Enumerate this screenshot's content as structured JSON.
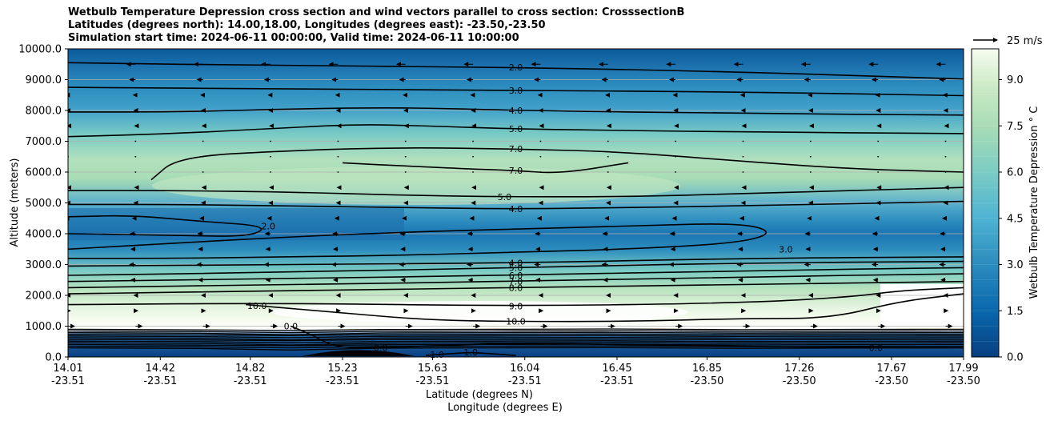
{
  "title": {
    "line1": "Wetbulb Temperature Depression cross section and wind vectors parallel to cross section: CrosssectionB",
    "line2": "Latitudes (degrees north): 14.00,18.00, Longitudes (degrees east): -23.50,-23.50",
    "line3": "Simulation start time: 2024-06-11 00:00:00, Valid time: 2024-06-11 10:00:00"
  },
  "chart_data": {
    "type": "contour",
    "title": "Wetbulb Temperature Depression cross section and wind vectors parallel to cross section: CrosssectionB",
    "ylabel": "Altitude (meters)",
    "xlabel_lat": "Latitude (degrees N)",
    "xlabel_lon": "Longitude (degrees E)",
    "ylim": [
      0,
      10000
    ],
    "xlim": [
      14.01,
      17.99
    ],
    "y_ticks": [
      0,
      1000,
      2000,
      3000,
      4000,
      5000,
      6000,
      7000,
      8000,
      9000,
      10000
    ],
    "y_tick_labels": [
      "0.0",
      "1000.0",
      "2000.0",
      "3000.0",
      "4000.0",
      "5000.0",
      "6000.0",
      "7000.0",
      "8000.0",
      "9000.0",
      "10000.0"
    ],
    "x_ticks": [
      {
        "lat": "14.01",
        "lon": "-23.51",
        "v": 14.01
      },
      {
        "lat": "14.42",
        "lon": "-23.51",
        "v": 14.42
      },
      {
        "lat": "14.82",
        "lon": "-23.51",
        "v": 14.82
      },
      {
        "lat": "15.23",
        "lon": "-23.51",
        "v": 15.23
      },
      {
        "lat": "15.63",
        "lon": "-23.51",
        "v": 15.63
      },
      {
        "lat": "16.04",
        "lon": "-23.51",
        "v": 16.04
      },
      {
        "lat": "16.45",
        "lon": "-23.51",
        "v": 16.45
      },
      {
        "lat": "16.85",
        "lon": "-23.50",
        "v": 16.85
      },
      {
        "lat": "17.26",
        "lon": "-23.50",
        "v": 17.26
      },
      {
        "lat": "17.67",
        "lon": "-23.50",
        "v": 17.67
      },
      {
        "lat": "17.99",
        "lon": "-23.50",
        "v": 17.99
      }
    ],
    "colorbar": {
      "label": "Wetbulb Temperature Depression ° C",
      "range": [
        0,
        10
      ],
      "ticks": [
        0,
        1.5,
        3,
        4.5,
        6,
        7.5,
        9
      ],
      "tick_labels": [
        "0.0",
        "1.5",
        "3.0",
        "4.5",
        "6.0",
        "7.5",
        "9.0"
      ]
    },
    "quiver_key": {
      "label": "25 m/s",
      "value": 25
    },
    "contours": [
      {
        "level": 2.0,
        "label": "2.0",
        "x": [
          14.01,
          15.0,
          16.0,
          17.0,
          17.99
        ],
        "y": [
          9550,
          9450,
          9400,
          9250,
          9020
        ],
        "labels_at": [
          16.0
        ]
      },
      {
        "level": 3.0,
        "label": "3.0",
        "x": [
          14.01,
          15.0,
          16.0,
          17.0,
          17.99
        ],
        "y": [
          8750,
          8700,
          8650,
          8600,
          8480
        ],
        "labels_at": [
          16.0
        ]
      },
      {
        "level": 4.0,
        "label": "4.0",
        "x": [
          14.01,
          14.5,
          15.0,
          15.5,
          16.0,
          17.0,
          17.99
        ],
        "y": [
          7950,
          7950,
          8050,
          8100,
          8000,
          7900,
          7850
        ],
        "labels_at": [
          16.0
        ]
      },
      {
        "level": 5.0,
        "label": "5.0",
        "x": [
          14.01,
          14.5,
          15.0,
          15.3,
          15.6,
          16.0,
          16.5,
          17.0,
          17.99
        ],
        "y": [
          7150,
          7250,
          7450,
          7550,
          7500,
          7400,
          7350,
          7300,
          7250
        ],
        "labels_at": [
          16.0
        ]
      },
      {
        "level": 7.0,
        "label": "7.0",
        "x": [
          14.38,
          14.5,
          15.0,
          15.5,
          16.0,
          16.5,
          17.0,
          17.5,
          17.99
        ],
        "y": [
          5750,
          6500,
          6700,
          6800,
          6750,
          6650,
          6350,
          6100,
          6000
        ],
        "labels_at": [
          16.0
        ]
      },
      {
        "level": 7.0,
        "label": "7.0",
        "x": [
          15.23,
          15.5,
          15.8,
          16.0,
          16.2,
          16.5
        ],
        "y": [
          6300,
          6200,
          6100,
          6050,
          5950,
          6300
        ],
        "labels_at": [
          16.0
        ]
      },
      {
        "level": 5.0,
        "label": "5.0",
        "x": [
          14.01,
          14.5,
          15.0,
          15.5,
          15.9,
          16.5,
          17.0,
          17.99
        ],
        "y": [
          5400,
          5400,
          5350,
          5250,
          5200,
          5200,
          5300,
          5500
        ],
        "labels_at": [
          15.95
        ]
      },
      {
        "level": 4.0,
        "label": "4.0",
        "x": [
          14.01,
          14.5,
          15.0,
          15.5,
          16.0,
          16.5,
          17.0,
          17.99
        ],
        "y": [
          4950,
          4950,
          4900,
          4850,
          4800,
          4850,
          4900,
          5050
        ],
        "labels_at": [
          16.0
        ]
      },
      {
        "level": 2.0,
        "label": "2.0",
        "x": [
          14.01,
          14.3,
          14.6,
          14.9,
          14.82,
          14.5,
          14.01
        ],
        "y": [
          4550,
          4600,
          4400,
          4250,
          3900,
          3950,
          4000
        ],
        "labels_at": [
          14.9
        ]
      },
      {
        "level": 3.0,
        "label": "3.0",
        "x": [
          14.01,
          14.5,
          15.0,
          15.5,
          16.0,
          16.5,
          17.0,
          17.15,
          17.0,
          16.5,
          16.0,
          15.5,
          15.0,
          14.5,
          14.01
        ],
        "y": [
          3500,
          3700,
          3900,
          4050,
          4150,
          4250,
          4350,
          4050,
          3700,
          3500,
          3400,
          3300,
          3250,
          3200,
          3200
        ],
        "labels_at": [
          17.2
        ]
      },
      {
        "level": 4.0,
        "label": "4.0",
        "x": [
          14.01,
          15.0,
          16.0,
          17.0,
          17.99
        ],
        "y": [
          2950,
          3000,
          3050,
          3200,
          3250
        ],
        "labels_at": [
          16.0
        ]
      },
      {
        "level": 5.0,
        "label": "5.0",
        "x": [
          14.01,
          15.0,
          16.0,
          17.0,
          17.99
        ],
        "y": [
          2650,
          2750,
          2900,
          3050,
          3100
        ],
        "labels_at": [
          16.0
        ]
      },
      {
        "level": 6.0,
        "label": "6.0",
        "x": [
          14.01,
          15.0,
          16.0,
          17.0,
          17.99
        ],
        "y": [
          2450,
          2550,
          2650,
          2800,
          2900
        ],
        "labels_at": [
          16.0
        ]
      },
      {
        "level": 7.0,
        "label": "7.0",
        "x": [
          14.01,
          15.0,
          16.0,
          17.0,
          17.99
        ],
        "y": [
          2250,
          2350,
          2450,
          2600,
          2700
        ],
        "labels_at": [
          16.0
        ]
      },
      {
        "level": 8.0,
        "label": "8.0",
        "x": [
          14.01,
          15.0,
          16.0,
          17.0,
          17.99
        ],
        "y": [
          2050,
          2150,
          2250,
          2350,
          2450
        ],
        "labels_at": [
          16.0
        ]
      },
      {
        "level": 9.0,
        "label": "9.0",
        "x": [
          14.01,
          15.0,
          16.0,
          17.0,
          17.5,
          17.7,
          17.99
        ],
        "y": [
          1700,
          1750,
          1650,
          1750,
          1950,
          2150,
          2250
        ],
        "labels_at": [
          16.0
        ]
      },
      {
        "level": 10.0,
        "label": "10.0",
        "x": [
          14.8,
          15.2,
          15.6,
          16.0,
          16.5,
          17.0,
          17.4,
          17.7,
          17.99
        ],
        "y": [
          1700,
          1450,
          1200,
          1150,
          1150,
          1250,
          1250,
          1800,
          2050
        ],
        "labels_at": [
          16.0,
          14.85
        ]
      },
      {
        "level": 0.0,
        "label": "0.0",
        "x": [
          15.0,
          15.1,
          15.2,
          15.4,
          15.6,
          15.8,
          16.0,
          16.5,
          17.0,
          17.5,
          17.99
        ],
        "y": [
          1000,
          700,
          300,
          300,
          350,
          400,
          450,
          400,
          350,
          300,
          300
        ],
        "labels_at": [
          15.0,
          15.4,
          17.6
        ]
      },
      {
        "level": 1.0,
        "label": "1.0",
        "x": [
          15.6,
          15.7,
          15.8,
          15.9,
          16.0
        ],
        "y": [
          50,
          100,
          150,
          100,
          50
        ],
        "labels_at": [
          15.65,
          15.8
        ]
      }
    ],
    "wind_vectors": {
      "description": "Wind vectors parallel to cross section; easterly (leftward) aloft, westerly (rightward) near surface",
      "rows": [
        {
          "alt": 9500,
          "u": -12
        },
        {
          "alt": 9000,
          "u": -8
        },
        {
          "alt": 8500,
          "u": -3
        },
        {
          "alt": 8000,
          "u": -2
        },
        {
          "alt": 7500,
          "u": -1
        },
        {
          "alt": 7000,
          "u": 0
        },
        {
          "alt": 6500,
          "u": 0
        },
        {
          "alt": 6000,
          "u": 0
        },
        {
          "alt": 5500,
          "u": -1
        },
        {
          "alt": 5000,
          "u": -2
        },
        {
          "alt": 4500,
          "u": -4
        },
        {
          "alt": 4000,
          "u": -7
        },
        {
          "alt": 3500,
          "u": -6
        },
        {
          "alt": 3000,
          "u": -8
        },
        {
          "alt": 2500,
          "u": -6
        },
        {
          "alt": 2000,
          "u": -2
        },
        {
          "alt": 1500,
          "u": 3
        },
        {
          "alt": 1000,
          "u": 9
        }
      ]
    }
  }
}
